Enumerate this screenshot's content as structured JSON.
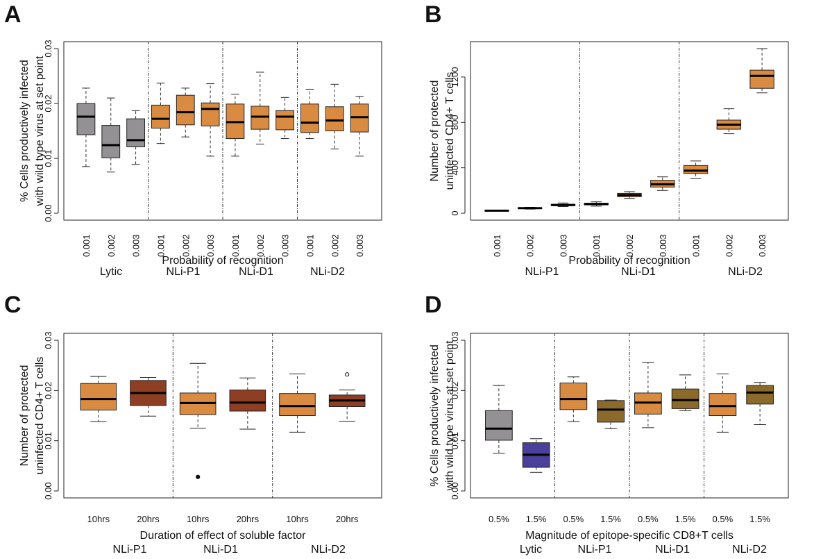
{
  "chart_data": [
    {
      "id": "A",
      "panel_label": "A",
      "type": "boxplot",
      "xlabel": "Probability of recognition",
      "ylabel": [
        "% Cells productively infected",
        "with wild type virus at set point"
      ],
      "ylim": [
        0,
        0.03
      ],
      "yticks": [
        "0.00",
        "0.01",
        "0.02",
        "0.03"
      ],
      "tick_labels": [
        "0.001",
        "0.002",
        "0.003",
        "0.001",
        "0.002",
        "0.003",
        "0.001",
        "0.002",
        "0.003",
        "0.001",
        "0.002",
        "0.003"
      ],
      "tick_rotation": -90,
      "groups": [
        {
          "name": "Lytic",
          "color": "#939193"
        },
        {
          "name": "NLi-P1",
          "color": "#d98b42"
        },
        {
          "name": "NLi-D1",
          "color": "#d98b42"
        },
        {
          "name": "NLi-D2",
          "color": "#d98b42"
        }
      ],
      "boxes": [
        {
          "group": 0,
          "whisker_low": 0.0085,
          "q1": 0.0143,
          "median": 0.0176,
          "q3": 0.02,
          "whisker_high": 0.0228
        },
        {
          "group": 0,
          "whisker_low": 0.0075,
          "q1": 0.0101,
          "median": 0.0124,
          "q3": 0.016,
          "whisker_high": 0.021
        },
        {
          "group": 0,
          "whisker_low": 0.0089,
          "q1": 0.0121,
          "median": 0.0133,
          "q3": 0.0172,
          "whisker_high": 0.0187
        },
        {
          "group": 1,
          "whisker_low": 0.0127,
          "q1": 0.0155,
          "median": 0.0172,
          "q3": 0.0197,
          "whisker_high": 0.0237
        },
        {
          "group": 1,
          "whisker_low": 0.0139,
          "q1": 0.0161,
          "median": 0.0184,
          "q3": 0.0215,
          "whisker_high": 0.0228
        },
        {
          "group": 1,
          "whisker_low": 0.0104,
          "q1": 0.0159,
          "median": 0.019,
          "q3": 0.0201,
          "whisker_high": 0.0236
        },
        {
          "group": 2,
          "whisker_low": 0.0104,
          "q1": 0.0136,
          "median": 0.0166,
          "q3": 0.0199,
          "whisker_high": 0.0217
        },
        {
          "group": 2,
          "whisker_low": 0.0126,
          "q1": 0.0153,
          "median": 0.0176,
          "q3": 0.0195,
          "whisker_high": 0.0257
        },
        {
          "group": 2,
          "whisker_low": 0.0136,
          "q1": 0.0152,
          "median": 0.0176,
          "q3": 0.0187,
          "whisker_high": 0.0211
        },
        {
          "group": 3,
          "whisker_low": 0.0136,
          "q1": 0.0147,
          "median": 0.0165,
          "q3": 0.0199,
          "whisker_high": 0.0226
        },
        {
          "group": 3,
          "whisker_low": 0.0117,
          "q1": 0.015,
          "median": 0.0169,
          "q3": 0.0194,
          "whisker_high": 0.0235
        },
        {
          "group": 3,
          "whisker_low": 0.0104,
          "q1": 0.0148,
          "median": 0.0175,
          "q3": 0.0199,
          "whisker_high": 0.0213
        }
      ],
      "outliers": [],
      "separators_after": [
        3,
        6,
        9
      ]
    },
    {
      "id": "B",
      "panel_label": "B",
      "type": "boxplot",
      "xlabel": "Probability of recognition",
      "ylabel": [
        "Number of protected",
        "uninfected CD4+ T cells"
      ],
      "ylim": [
        0,
        1450
      ],
      "yticks": [
        "0",
        "400",
        "800",
        "1200"
      ],
      "ytick_values": [
        0,
        400,
        800,
        1200
      ],
      "tick_labels": [
        "0.001",
        "0.002",
        "0.003",
        "0.001",
        "0.002",
        "0.003",
        "0.001",
        "0.002",
        "0.003"
      ],
      "tick_rotation": -90,
      "groups": [
        {
          "name": "NLi-P1",
          "color": "#d98b42"
        },
        {
          "name": "NLi-D1",
          "color": "#d98b42"
        },
        {
          "name": "NLi-D2",
          "color": "#d98b42"
        }
      ],
      "boxes": [
        {
          "group": 0,
          "whisker_low": 18,
          "q1": 20,
          "median": 22,
          "q3": 24,
          "whisker_high": 26
        },
        {
          "group": 0,
          "whisker_low": 36,
          "q1": 40,
          "median": 44,
          "q3": 47,
          "whisker_high": 52
        },
        {
          "group": 0,
          "whisker_low": 58,
          "q1": 66,
          "median": 72,
          "q3": 79,
          "whisker_high": 90
        },
        {
          "group": 1,
          "whisker_low": 62,
          "q1": 73,
          "median": 80,
          "q3": 88,
          "whisker_high": 100
        },
        {
          "group": 1,
          "whisker_low": 130,
          "q1": 145,
          "median": 160,
          "q3": 175,
          "whisker_high": 190
        },
        {
          "group": 1,
          "whisker_low": 200,
          "q1": 230,
          "median": 255,
          "q3": 290,
          "whisker_high": 320
        },
        {
          "group": 2,
          "whisker_low": 305,
          "q1": 350,
          "median": 375,
          "q3": 420,
          "whisker_high": 460
        },
        {
          "group": 2,
          "whisker_low": 700,
          "q1": 740,
          "median": 780,
          "q3": 820,
          "whisker_high": 920
        },
        {
          "group": 2,
          "whisker_low": 1060,
          "q1": 1100,
          "median": 1210,
          "q3": 1260,
          "whisker_high": 1450
        }
      ],
      "outliers": [],
      "separators_after": [
        3,
        6
      ]
    },
    {
      "id": "C",
      "panel_label": "C",
      "type": "boxplot",
      "xlabel": "Duration of effect of soluble factor",
      "ylabel": [
        "Number of protected",
        "uninfected CD4+ T cells"
      ],
      "ylim": [
        0,
        0.03
      ],
      "yticks": [
        "0.00",
        "0.01",
        "0.02",
        "0.03"
      ],
      "tick_labels": [
        "10hrs",
        "20hrs",
        "10hrs",
        "20hrs",
        "10hrs",
        "20hrs"
      ],
      "tick_rotation": 0,
      "groups": [
        {
          "name": "NLi-P1",
          "color": "#d98b42"
        },
        {
          "name": "NLi-D1",
          "color": "#d98b42"
        },
        {
          "name": "NLi-D2",
          "color": "#d98b42"
        }
      ],
      "box_colors": [
        "#d98b42",
        "#8e3e23",
        "#d98b42",
        "#8e3e23",
        "#d98b42",
        "#8e3e23"
      ],
      "boxes": [
        {
          "group": 0,
          "whisker_low": 0.0138,
          "q1": 0.0161,
          "median": 0.0183,
          "q3": 0.0214,
          "whisker_high": 0.0228
        },
        {
          "group": 0,
          "whisker_low": 0.0149,
          "q1": 0.017,
          "median": 0.0195,
          "q3": 0.022,
          "whisker_high": 0.0226
        },
        {
          "group": 1,
          "whisker_low": 0.0125,
          "q1": 0.0152,
          "median": 0.0175,
          "q3": 0.0195,
          "whisker_high": 0.0254
        },
        {
          "group": 1,
          "whisker_low": 0.0123,
          "q1": 0.0159,
          "median": 0.0176,
          "q3": 0.0201,
          "whisker_high": 0.0225
        },
        {
          "group": 2,
          "whisker_low": 0.0117,
          "q1": 0.015,
          "median": 0.0169,
          "q3": 0.0194,
          "whisker_high": 0.0233
        },
        {
          "group": 2,
          "whisker_low": 0.0139,
          "q1": 0.0168,
          "median": 0.018,
          "q3": 0.0191,
          "whisker_high": 0.0201
        }
      ],
      "outliers": [
        {
          "box": 2,
          "value": 0.0028,
          "filled": true
        },
        {
          "box": 5,
          "value": 0.0232,
          "filled": false
        }
      ],
      "separators_after": [
        2,
        4
      ]
    },
    {
      "id": "D",
      "panel_label": "D",
      "type": "boxplot",
      "xlabel": "Magnitude of epitope-specific CD8+T cells",
      "ylabel": [
        "% Cells productively infected",
        "with wild type virus at set point"
      ],
      "ylim": [
        0,
        0.03
      ],
      "yticks": [
        "0.00",
        "0.01",
        "0.02",
        "0.03"
      ],
      "tick_labels": [
        "0.5%",
        "1.5%",
        "0.5%",
        "1.5%",
        "0.5%",
        "1.5%",
        "0.5%",
        "1.5%"
      ],
      "tick_rotation": 0,
      "groups": [
        {
          "name": "Lytic",
          "color": "#939193"
        },
        {
          "name": "NLi-P1",
          "color": "#d98b42"
        },
        {
          "name": "NLi-D1",
          "color": "#d98b42"
        },
        {
          "name": "NLi-D2",
          "color": "#d98b42"
        }
      ],
      "box_colors": [
        "#939193",
        "#4a3f9a",
        "#d98b42",
        "#8b6a2b",
        "#d98b42",
        "#8b6a2b",
        "#d98b42",
        "#8b6a2b"
      ],
      "boxes": [
        {
          "group": 0,
          "whisker_low": 0.0075,
          "q1": 0.0101,
          "median": 0.0124,
          "q3": 0.016,
          "whisker_high": 0.021
        },
        {
          "group": 0,
          "whisker_low": 0.0037,
          "q1": 0.0047,
          "median": 0.0072,
          "q3": 0.0096,
          "whisker_high": 0.0104
        },
        {
          "group": 1,
          "whisker_low": 0.0138,
          "q1": 0.0162,
          "median": 0.0183,
          "q3": 0.0215,
          "whisker_high": 0.0227
        },
        {
          "group": 1,
          "whisker_low": 0.0124,
          "q1": 0.0137,
          "median": 0.0162,
          "q3": 0.018,
          "whisker_high": 0.0181
        },
        {
          "group": 2,
          "whisker_low": 0.0126,
          "q1": 0.0153,
          "median": 0.0176,
          "q3": 0.0195,
          "whisker_high": 0.0256
        },
        {
          "group": 2,
          "whisker_low": 0.016,
          "q1": 0.0164,
          "median": 0.0181,
          "q3": 0.0203,
          "whisker_high": 0.0231
        },
        {
          "group": 3,
          "whisker_low": 0.0117,
          "q1": 0.015,
          "median": 0.0169,
          "q3": 0.0194,
          "whisker_high": 0.0233
        },
        {
          "group": 3,
          "whisker_low": 0.0132,
          "q1": 0.0173,
          "median": 0.0196,
          "q3": 0.021,
          "whisker_high": 0.0216
        }
      ],
      "outliers": [],
      "separators_after": [
        2,
        4,
        6
      ]
    }
  ]
}
